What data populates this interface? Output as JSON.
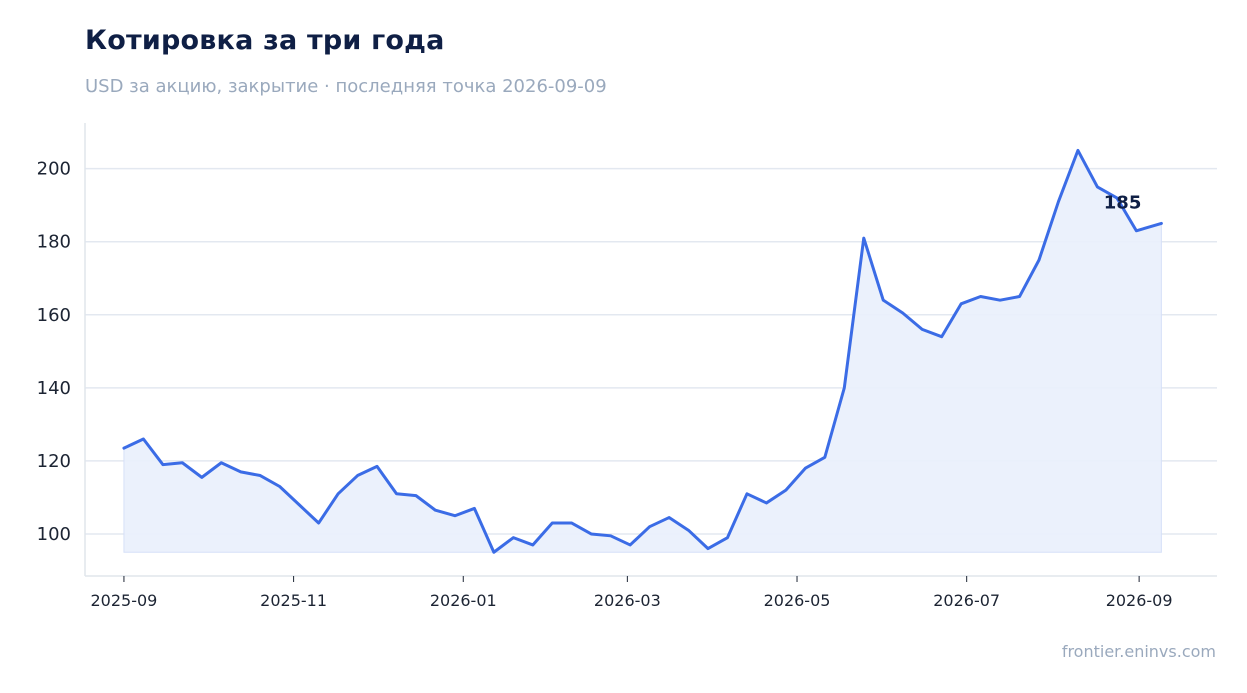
{
  "title": "Котировка за три года",
  "subtitle": "USD за акцию, закрытие · последняя точка 2026-09-09",
  "footer": "frontier.eninvs.com",
  "colors": {
    "line": "#3b6ce6",
    "fill": "#e9effc",
    "grid": "#e3e8f0",
    "axis": "#e0e5ec"
  },
  "chart_data": {
    "type": "area",
    "title": "Котировка за три года",
    "subtitle": "USD за акцию, закрытие · последняя точка 2026-09-09",
    "xlabel": "",
    "ylabel": "",
    "ylim": [
      88.5,
      212.5
    ],
    "xlim": [
      "2025-08-18",
      "2026-09-29"
    ],
    "grid": "horizontal",
    "yticks": [
      100,
      120,
      140,
      160,
      180,
      200
    ],
    "xticks": [
      "2025-09",
      "2025-11",
      "2026-01",
      "2026-03",
      "2026-05",
      "2026-07",
      "2026-09"
    ],
    "end_label": "185",
    "series": [
      {
        "x": [
          "2025-09-01",
          "2025-09-08",
          "2025-09-15",
          "2025-09-22",
          "2025-09-29",
          "2025-10-06",
          "2025-10-13",
          "2025-10-20",
          "2025-10-27",
          "2025-11-03",
          "2025-11-10",
          "2025-11-17",
          "2025-11-24",
          "2025-12-01",
          "2025-12-08",
          "2025-12-15",
          "2025-12-22",
          "2025-12-29",
          "2026-01-05",
          "2026-01-12",
          "2026-01-19",
          "2026-01-26",
          "2026-02-02",
          "2026-02-09",
          "2026-02-16",
          "2026-02-23",
          "2026-03-02",
          "2026-03-09",
          "2026-03-16",
          "2026-03-23",
          "2026-03-30",
          "2026-04-06",
          "2026-04-13",
          "2026-04-20",
          "2026-04-27",
          "2026-05-04",
          "2026-05-11",
          "2026-05-18",
          "2026-05-25",
          "2026-06-01",
          "2026-06-08",
          "2026-06-15",
          "2026-06-22",
          "2026-06-29",
          "2026-07-06",
          "2026-07-13",
          "2026-07-20",
          "2026-07-27",
          "2026-08-03",
          "2026-08-10",
          "2026-08-17",
          "2026-08-24",
          "2026-08-31",
          "2026-09-09"
        ],
        "values": [
          123.5,
          126,
          119,
          119.5,
          115.5,
          119.5,
          117,
          116,
          113,
          108,
          103,
          111,
          116,
          118.5,
          111,
          110.5,
          106.5,
          105,
          107,
          95,
          99,
          97,
          103,
          103,
          100,
          99.5,
          97,
          102,
          104.5,
          101,
          96,
          99,
          111,
          108.5,
          112,
          118,
          121,
          140,
          181,
          164,
          160.5,
          156,
          154,
          163,
          165,
          164,
          165,
          175,
          191,
          205,
          195,
          192,
          183,
          185
        ]
      }
    ]
  }
}
